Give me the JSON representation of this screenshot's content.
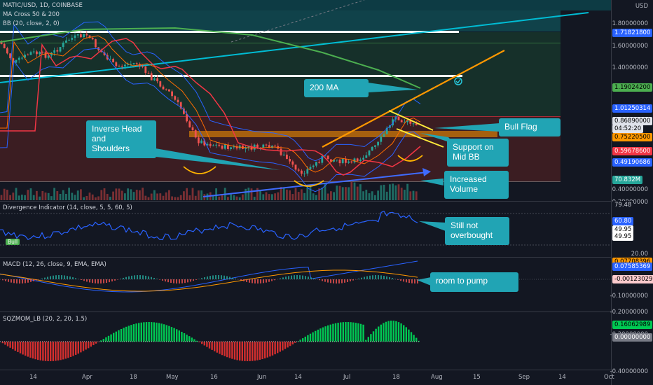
{
  "main": {
    "symbol": "MATIC/USD, 1D, COINBASE",
    "ind1": "MA Cross 50 & 200",
    "ind2": "BB (20, close, 2, 0)",
    "currency": "USD",
    "yticks": [
      "1.80000000",
      "1.60000000",
      "1.40000000",
      "0.40000000",
      "0.20000000"
    ],
    "badges": [
      {
        "text": "1.71821800",
        "bg": "#2962ff",
        "fg": "#ffffff"
      },
      {
        "text": "1.19024200",
        "bg": "#4caf50",
        "fg": "#000000"
      },
      {
        "text": "1.01250314",
        "bg": "#2962ff",
        "fg": "#ffffff"
      },
      {
        "text": "0.86890000",
        "bg": "#e0e3eb",
        "fg": "#000000"
      },
      {
        "text": "04:52:20",
        "bg": "#e0e3eb",
        "fg": "#000000"
      },
      {
        "text": "0.75220500",
        "bg": "#ff9800",
        "fg": "#000000"
      },
      {
        "text": "0.59678600",
        "bg": "#f23645",
        "fg": "#ffffff"
      },
      {
        "text": "0.49190686",
        "bg": "#2962ff",
        "fg": "#ffffff"
      },
      {
        "text": "70.832M",
        "bg": "#26a69a",
        "fg": "#ffffff"
      }
    ]
  },
  "callouts": {
    "ma200": "200 MA",
    "ihs": "Inverse Head\nand\nShoulders",
    "bullflag": "Bull Flag",
    "support": "Support on\nMid BB",
    "volume": "Increased\nVolume",
    "notob": "Still not\noverbought",
    "pump": "room to pump"
  },
  "divergence": {
    "title": "Divergence Indicator (14, close, 5, 5, 60, 5)",
    "bull": "Bull",
    "badges": [
      {
        "text": "79.48",
        "bg": "#131722",
        "fg": "#d1d4dc"
      },
      {
        "text": "60.80",
        "bg": "#2962ff",
        "fg": "#ffffff"
      },
      {
        "text": "49.95",
        "bg": "#ffffff",
        "fg": "#000000"
      },
      {
        "text": "49.95",
        "bg": "#ffffff",
        "fg": "#000000"
      }
    ],
    "ytick": "20.00"
  },
  "macd": {
    "title": "MACD (12, 26, close, 9, EMA, EMA)",
    "badges": [
      {
        "text": "0.07708396",
        "bg": "#ff9800",
        "fg": "#000000"
      },
      {
        "text": "0.07585369",
        "bg": "#2962ff",
        "fg": "#ffffff"
      },
      {
        "text": "-0.00123029",
        "bg": "#fccbcd",
        "fg": "#000000"
      }
    ],
    "yticks": [
      "-0.10000000",
      "-0.20000000"
    ]
  },
  "sqz": {
    "title": "SQZMOM_LB (20, 2, 20, 1.5)",
    "badges": [
      {
        "text": "0.16062989",
        "bg": "#00c853",
        "fg": "#000000"
      },
      {
        "text": "0.00000000",
        "bg": "#787b86",
        "fg": "#ffffff"
      }
    ],
    "yticks": [
      "-0.20000000",
      "-0.40000000"
    ]
  },
  "xaxis": [
    "14",
    "Apr",
    "18",
    "May",
    "16",
    "Jun",
    "14",
    "Jul",
    "18",
    "Aug",
    "15",
    "Sep",
    "14",
    "Oct"
  ]
}
